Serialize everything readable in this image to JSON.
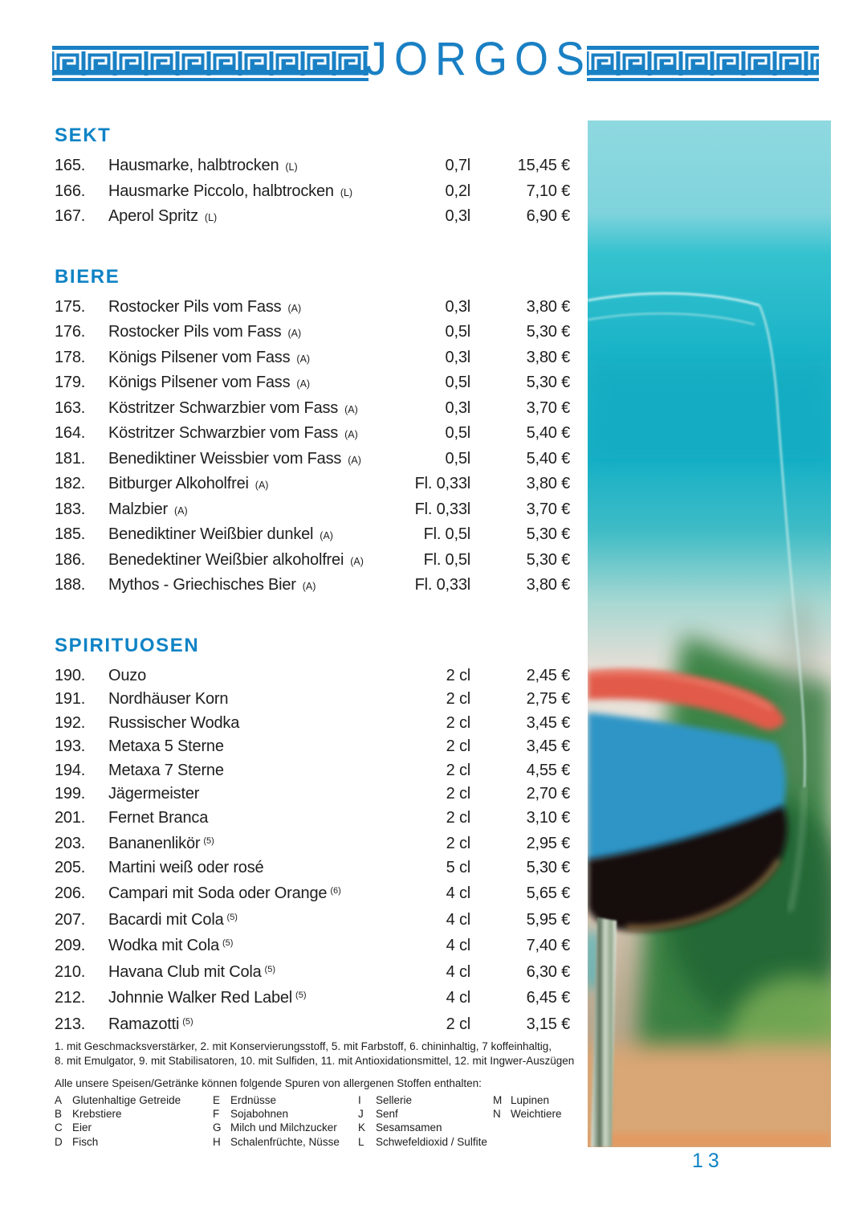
{
  "header": {
    "title": "JORGOS"
  },
  "sections": [
    {
      "heading": "SEKT",
      "items": [
        {
          "num": "165.",
          "name": "Hausmarke, halbtrocken",
          "note": "(L)",
          "size": "0,7l",
          "price": "15,45 €"
        },
        {
          "num": "166.",
          "name": "Hausmarke Piccolo, halbtrocken",
          "note": "(L)",
          "size": "0,2l",
          "price": "7,10 €"
        },
        {
          "num": "167.",
          "name": "Aperol Spritz",
          "note": "(L)",
          "size": "0,3l",
          "price": "6,90 €"
        }
      ]
    },
    {
      "heading": "BIERE",
      "items": [
        {
          "num": "175.",
          "name": "Rostocker Pils vom Fass",
          "note": "(A)",
          "size": "0,3l",
          "price": "3,80 €"
        },
        {
          "num": "176.",
          "name": "Rostocker Pils vom Fass",
          "note": "(A)",
          "size": "0,5l",
          "price": "5,30 €"
        },
        {
          "num": "178.",
          "name": "Königs Pilsener vom Fass",
          "note": "(A)",
          "size": "0,3l",
          "price": "3,80 €"
        },
        {
          "num": "179.",
          "name": "Königs Pilsener vom Fass",
          "note": "(A)",
          "size": "0,5l",
          "price": "5,30 €"
        },
        {
          "num": "163.",
          "name": "Köstritzer Schwarzbier vom Fass",
          "note": "(A)",
          "size": "0,3l",
          "price": "3,70 €"
        },
        {
          "num": "164.",
          "name": "Köstritzer Schwarzbier vom Fass",
          "note": "(A)",
          "size": "0,5l",
          "price": "5,40 €"
        },
        {
          "num": "181.",
          "name": "Benediktiner Weissbier vom Fass",
          "note": "(A)",
          "size": "0,5l",
          "price": "5,40 €"
        },
        {
          "num": "182.",
          "name": "Bitburger Alkoholfrei",
          "note": "(A)",
          "size": "Fl. 0,33l",
          "price": "3,80 €"
        },
        {
          "num": "183.",
          "name": "Malzbier",
          "note": "(A)",
          "size": "Fl. 0,33l",
          "price": "3,70 €"
        },
        {
          "num": "185.",
          "name": "Benediktiner Weißbier dunkel",
          "note": "(A)",
          "size": "Fl. 0,5l",
          "price": "5,30 €"
        },
        {
          "num": "186.",
          "name": "Benedektiner Weißbier alkoholfrei",
          "note": "(A)",
          "size": "Fl. 0,5l",
          "price": "5,30 €"
        },
        {
          "num": "188.",
          "name": "Mythos - Griechisches Bier",
          "note": "(A)",
          "size": "Fl. 0,33l",
          "price": "3,80 €"
        }
      ]
    },
    {
      "heading": "SPIRITUOSEN",
      "items": [
        {
          "num": "190.",
          "name": "Ouzo",
          "note": "",
          "size": "2 cl",
          "price": "2,45 €"
        },
        {
          "num": "191.",
          "name": "Nordhäuser Korn",
          "note": "",
          "size": "2 cl",
          "price": "2,75 €"
        },
        {
          "num": "192.",
          "name": "Russischer Wodka",
          "note": "",
          "size": "2 cl",
          "price": "3,45 €"
        },
        {
          "num": "193.",
          "name": "Metaxa 5 Sterne",
          "note": "",
          "size": "2 cl",
          "price": "3,45 €"
        },
        {
          "num": "194.",
          "name": "Metaxa 7 Sterne",
          "note": "",
          "size": "2 cl",
          "price": "4,55 €"
        },
        {
          "num": "199.",
          "name": "Jägermeister",
          "note": "",
          "size": "2 cl",
          "price": "2,70 €"
        },
        {
          "num": "201.",
          "name": "Fernet Branca",
          "note": "",
          "size": "2 cl",
          "price": "3,10 €"
        },
        {
          "num": "203.",
          "name": "Bananenlikör",
          "note": "(5)",
          "size": "2 cl",
          "price": "2,95 €"
        },
        {
          "num": "205.",
          "name": "Martini weiß oder rosé",
          "note": "",
          "size": "5 cl",
          "price": "5,30 €"
        },
        {
          "num": "206.",
          "name": "Campari mit Soda oder Orange",
          "note": "(6)",
          "size": "4 cl",
          "price": "5,65 €"
        },
        {
          "num": "207.",
          "name": "Bacardi mit Cola",
          "note": "(5)",
          "size": "4 cl",
          "price": "5,95 €"
        },
        {
          "num": "209.",
          "name": "Wodka mit Cola",
          "note": "(5)",
          "size": "4 cl",
          "price": "7,40 €"
        },
        {
          "num": "210.",
          "name": "Havana Club mit Cola",
          "note": "(5)",
          "size": "4 cl",
          "price": "6,30 €"
        },
        {
          "num": "212.",
          "name": "Johnnie Walker Red Label",
          "note": "(5)",
          "size": "4 cl",
          "price": "6,45 €"
        },
        {
          "num": "213.",
          "name": "Ramazotti",
          "note": "(5)",
          "size": "2 cl",
          "price": "3,15 €"
        }
      ]
    }
  ],
  "footnotes": {
    "line1": "1. mit Geschmacksverstärker, 2. mit Konservierungsstoff, 5. mit Farbstoff, 6. chininhaltig, 7 koffeinhaltig,",
    "line2": "8. mit Emulgator, 9. mit Stabilisatoren, 10. mit Sulfiden, 11. mit Antioxidationsmittel, 12. mit Ingwer-Auszügen"
  },
  "allergens": {
    "intro": "Alle unsere Speisen/Getränke können folgende Spuren von allergenen Stoffen enthalten:",
    "columns": [
      [
        {
          "code": "A",
          "label": "Glutenhaltige Getreide"
        },
        {
          "code": "B",
          "label": "Krebstiere"
        },
        {
          "code": "C",
          "label": "Eier"
        },
        {
          "code": "D",
          "label": "Fisch"
        }
      ],
      [
        {
          "code": "E",
          "label": "Erdnüsse"
        },
        {
          "code": "F",
          "label": "Sojabohnen"
        },
        {
          "code": "G",
          "label": "Milch und Milchzucker"
        },
        {
          "code": "H",
          "label": "Schalenfrüchte, Nüsse"
        }
      ],
      [
        {
          "code": "I",
          "label": "Sellerie"
        },
        {
          "code": "J",
          "label": "Senf"
        },
        {
          "code": "K",
          "label": "Sesamsamen"
        },
        {
          "code": "L",
          "label": "Schwefeldioxid / Sulfite"
        }
      ],
      [
        {
          "code": "M",
          "label": "Lupinen"
        },
        {
          "code": "N",
          "label": "Weichtiere"
        }
      ]
    ]
  },
  "footer": {
    "page_number": "13"
  },
  "colors": {
    "accent_blue": "#0f83c5",
    "meander_blue": "#1a80c4",
    "text": "#1e1e1e",
    "photo": {
      "sky": "#8fd9e0",
      "sea": "#17b0c6",
      "sand_band": "#e8dcd0",
      "wine_surface_red": "#e25a49",
      "reflection_blue": "#2d95c6",
      "wine_dark": "#140a0e",
      "background_green": "#2e7d3b",
      "ground_tan": "#d9a675"
    }
  }
}
